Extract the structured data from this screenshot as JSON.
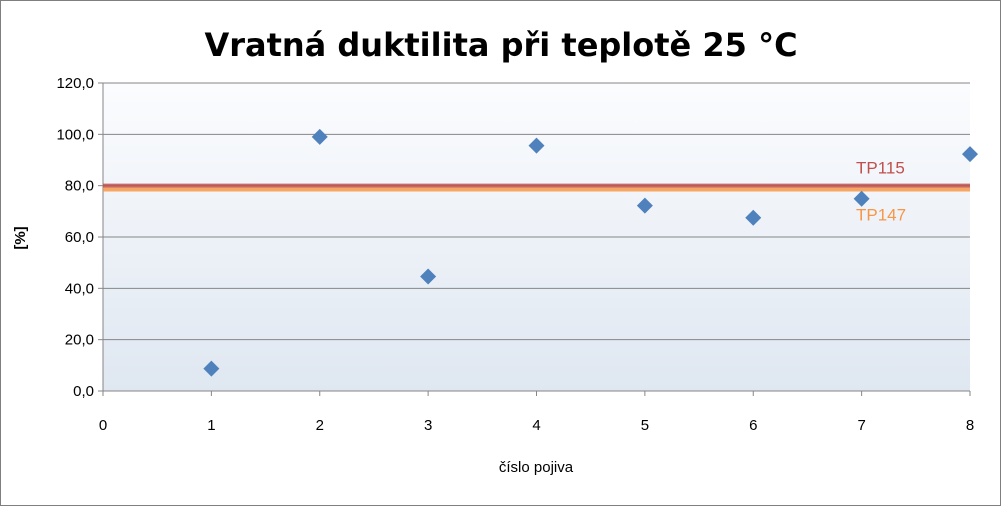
{
  "chart_data": {
    "type": "scatter",
    "title": "Vratná duktilita při teplotě 25 °C",
    "xlabel": "číslo pojiva",
    "ylabel": "[%]",
    "xlim": [
      0,
      8
    ],
    "ylim": [
      0,
      120
    ],
    "x_ticks": [
      "0",
      "1",
      "2",
      "3",
      "4",
      "5",
      "6",
      "7",
      "8"
    ],
    "y_ticks": [
      "0,0",
      "20,0",
      "40,0",
      "60,0",
      "80,0",
      "100,0",
      "120,0"
    ],
    "grid": true,
    "series": [
      {
        "color": "#4f81bd",
        "marker": "diamond",
        "points": [
          {
            "x": 1,
            "y": 8.7
          },
          {
            "x": 2,
            "y": 99.0
          },
          {
            "x": 3,
            "y": 44.6
          },
          {
            "x": 4,
            "y": 95.6
          },
          {
            "x": 5,
            "y": 72.2
          },
          {
            "x": 6,
            "y": 67.5
          },
          {
            "x": 7,
            "y": 74.9
          },
          {
            "x": 8,
            "y": 92.3
          }
        ]
      }
    ],
    "reference_lines": [
      {
        "label": "TP115",
        "y": 80,
        "color": "#c0504d"
      },
      {
        "label": "TP147",
        "y": 78.5,
        "color": "#f79646"
      }
    ]
  },
  "colors": {
    "plot_background_top": "#fbfcfe",
    "plot_background_bottom": "#dfe7f1",
    "gridline": "#868686",
    "marker": "#4f81bd",
    "tp115": "#c0504d",
    "tp147": "#f79646"
  }
}
